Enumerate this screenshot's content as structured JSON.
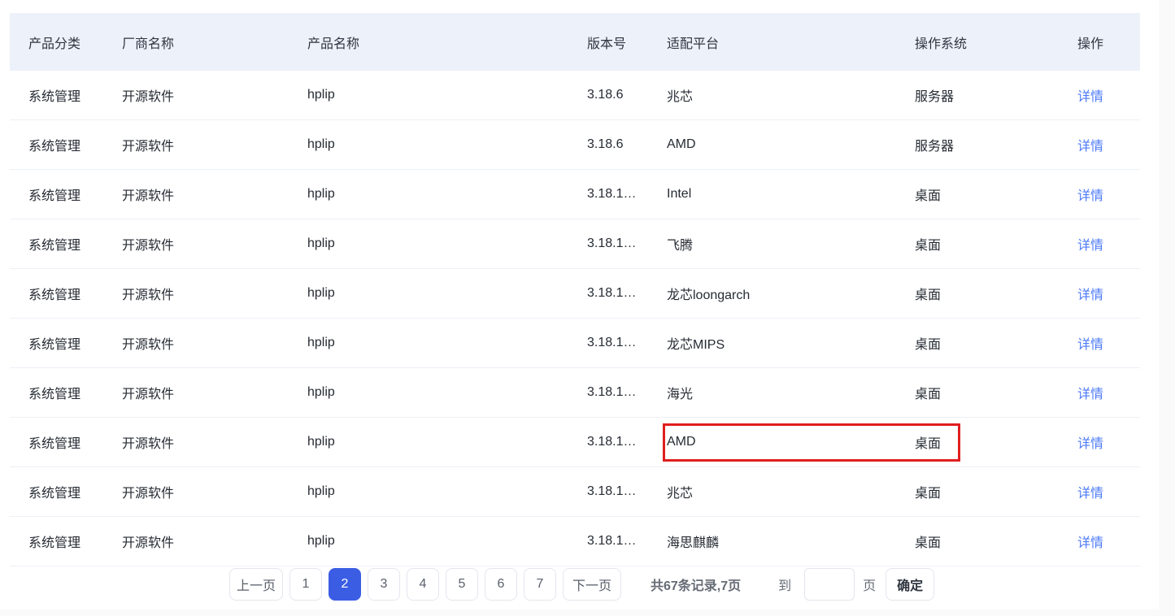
{
  "colors": {
    "header_bg": "#edf1fa",
    "link_blue": "#4c7af8",
    "active_page_blue": "#3b5de4",
    "highlight_red": "#e01e1e"
  },
  "table": {
    "headers": {
      "category": "产品分类",
      "vendor": "厂商名称",
      "product": "产品名称",
      "version": "版本号",
      "platform": "适配平台",
      "os": "操作系统",
      "action": "操作"
    },
    "action_label": "详情",
    "rows": [
      {
        "category": "系统管理",
        "vendor": "开源软件",
        "product": "hplip",
        "version": "3.18.6",
        "platform": "兆芯",
        "os": "服务器",
        "highlighted": false
      },
      {
        "category": "系统管理",
        "vendor": "开源软件",
        "product": "hplip",
        "version": "3.18.6",
        "platform": "AMD",
        "os": "服务器",
        "highlighted": false
      },
      {
        "category": "系统管理",
        "vendor": "开源软件",
        "product": "hplip",
        "version": "3.18.1…",
        "platform": "Intel",
        "os": "桌面",
        "highlighted": false
      },
      {
        "category": "系统管理",
        "vendor": "开源软件",
        "product": "hplip",
        "version": "3.18.1…",
        "platform": "飞腾",
        "os": "桌面",
        "highlighted": false
      },
      {
        "category": "系统管理",
        "vendor": "开源软件",
        "product": "hplip",
        "version": "3.18.1…",
        "platform": "龙芯loongarch",
        "os": "桌面",
        "highlighted": false
      },
      {
        "category": "系统管理",
        "vendor": "开源软件",
        "product": "hplip",
        "version": "3.18.1…",
        "platform": "龙芯MIPS",
        "os": "桌面",
        "highlighted": false
      },
      {
        "category": "系统管理",
        "vendor": "开源软件",
        "product": "hplip",
        "version": "3.18.1…",
        "platform": "海光",
        "os": "桌面",
        "highlighted": false
      },
      {
        "category": "系统管理",
        "vendor": "开源软件",
        "product": "hplip",
        "version": "3.18.1…",
        "platform": "AMD",
        "os": "桌面",
        "highlighted": true
      },
      {
        "category": "系统管理",
        "vendor": "开源软件",
        "product": "hplip",
        "version": "3.18.1…",
        "platform": "兆芯",
        "os": "桌面",
        "highlighted": false
      },
      {
        "category": "系统管理",
        "vendor": "开源软件",
        "product": "hplip",
        "version": "3.18.1…",
        "platform": "海思麒麟",
        "os": "桌面",
        "highlighted": false
      }
    ]
  },
  "pagination": {
    "prev_label": "上一页",
    "pages": [
      "1",
      "2",
      "3",
      "4",
      "5",
      "6",
      "7"
    ],
    "active_page": "2",
    "next_label": "下一页",
    "summary": "共67条记录,7页",
    "jump_label": "到",
    "jump_value": "",
    "jump_unit": "页",
    "confirm_label": "确定"
  }
}
